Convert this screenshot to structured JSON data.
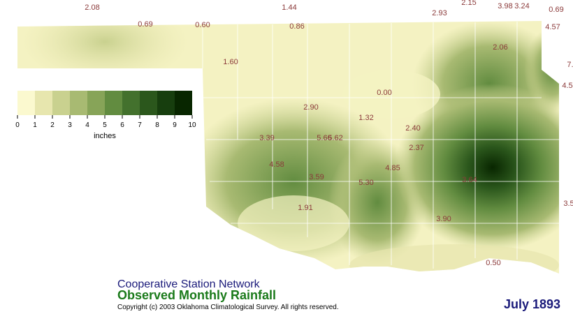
{
  "legend": {
    "colors": [
      "#fbf9cf",
      "#e7e6ae",
      "#c9d18f",
      "#a8ba72",
      "#87a458",
      "#628c40",
      "#43712d",
      "#2b571c",
      "#173e0e",
      "#082600"
    ],
    "ticks": [
      "0",
      "1",
      "2",
      "3",
      "4",
      "5",
      "6",
      "7",
      "8",
      "9",
      "10"
    ],
    "unit": "inches"
  },
  "stations": [
    "2.08",
    "1.44",
    "2.93",
    "2.15",
    "3.98",
    "3.24",
    "0.69",
    "0.69",
    "0.60",
    "0.86",
    "4.57",
    "2.06",
    "1.60",
    "7.",
    "4.5",
    "0.00",
    "2.90",
    "1.32",
    "2.40",
    "3.39",
    "5.66",
    "5.62",
    "2.37",
    "4.58",
    "4.85",
    "3.59",
    "3.64",
    "5.30",
    "3.5",
    "1.91",
    "3.90",
    "0.50"
  ],
  "header": {
    "network": "Cooperative Station Network",
    "title": "Observed Monthly Rainfall",
    "copyright": "Copyright (c) 2003 Oklahoma Climatological Survey. All rights reserved.",
    "date": "July 1893"
  }
}
